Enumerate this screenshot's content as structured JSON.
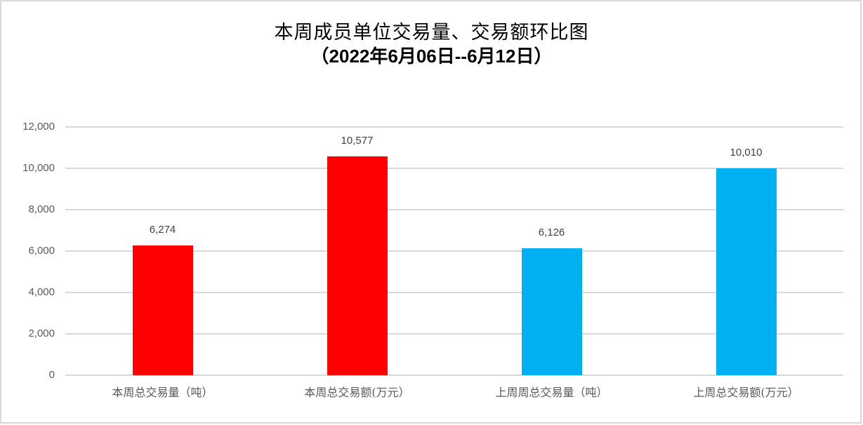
{
  "chart_data": {
    "type": "bar",
    "title": "本周成员单位交易量、交易额环比图",
    "subtitle": "（2022年6月06日--6月12日）",
    "categories": [
      "本周总交易量（吨）",
      "本周总交易额(万元）",
      "上周周总交易量（吨）",
      "上周总交易额(万元）"
    ],
    "values": [
      6274,
      10577,
      6126,
      10010
    ],
    "value_labels": [
      "6,274",
      "10,577",
      "6,126",
      "10,010"
    ],
    "bar_colors": [
      "#ff0000",
      "#ff0000",
      "#00b0f0",
      "#00b0f0"
    ],
    "xlabel": "",
    "ylabel": "",
    "ylim": [
      0,
      12000
    ],
    "yticks": [
      0,
      2000,
      4000,
      6000,
      8000,
      10000,
      12000
    ],
    "ytick_labels": [
      "0",
      "2,000",
      "4,000",
      "6,000",
      "8,000",
      "10,000",
      "12,000"
    ],
    "grid": true,
    "legend": "none"
  }
}
